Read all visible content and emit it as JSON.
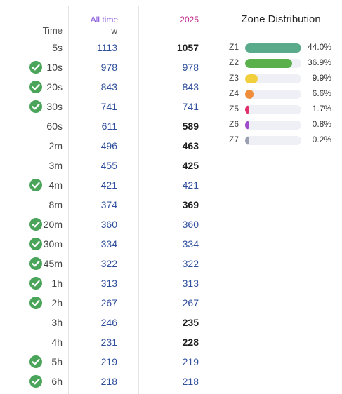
{
  "table": {
    "time_header": "Time",
    "alltime_header": "All time",
    "unit_header": "w",
    "year_header": "2025",
    "rows": [
      {
        "label": "5s",
        "all": "1113",
        "year": "1057",
        "check": false
      },
      {
        "label": "10s",
        "all": "978",
        "year": "978",
        "check": true
      },
      {
        "label": "20s",
        "all": "843",
        "year": "843",
        "check": true
      },
      {
        "label": "30s",
        "all": "741",
        "year": "741",
        "check": true
      },
      {
        "label": "60s",
        "all": "611",
        "year": "589",
        "check": false
      },
      {
        "label": "2m",
        "all": "496",
        "year": "463",
        "check": false
      },
      {
        "label": "3m",
        "all": "455",
        "year": "425",
        "check": false
      },
      {
        "label": "4m",
        "all": "421",
        "year": "421",
        "check": true
      },
      {
        "label": "8m",
        "all": "374",
        "year": "369",
        "check": false
      },
      {
        "label": "20m",
        "all": "360",
        "year": "360",
        "check": true
      },
      {
        "label": "30m",
        "all": "334",
        "year": "334",
        "check": true
      },
      {
        "label": "45m",
        "all": "322",
        "year": "322",
        "check": true
      },
      {
        "label": "1h",
        "all": "313",
        "year": "313",
        "check": true
      },
      {
        "label": "2h",
        "all": "267",
        "year": "267",
        "check": true
      },
      {
        "label": "3h",
        "all": "246",
        "year": "235",
        "check": false
      },
      {
        "label": "4h",
        "all": "231",
        "year": "228",
        "check": false
      },
      {
        "label": "5h",
        "all": "219",
        "year": "219",
        "check": true
      },
      {
        "label": "6h",
        "all": "218",
        "year": "218",
        "check": true
      }
    ]
  },
  "zones": {
    "title": "Zone Distribution",
    "items": [
      {
        "label": "Z1",
        "percent": 44.0,
        "text": "44.0%",
        "color": "#5aab8c"
      },
      {
        "label": "Z2",
        "percent": 36.9,
        "text": "36.9%",
        "color": "#5ab04a"
      },
      {
        "label": "Z3",
        "percent": 9.9,
        "text": "9.9%",
        "color": "#f2cf3c"
      },
      {
        "label": "Z4",
        "percent": 6.6,
        "text": "6.6%",
        "color": "#ef8d3a"
      },
      {
        "label": "Z5",
        "percent": 1.7,
        "text": "1.7%",
        "color": "#e0306a"
      },
      {
        "label": "Z6",
        "percent": 0.8,
        "text": "0.8%",
        "color": "#a04bc9"
      },
      {
        "label": "Z7",
        "percent": 0.2,
        "text": "0.2%",
        "color": "#9aa0b0"
      }
    ]
  },
  "icons": {
    "check": "check-circle-icon"
  },
  "colors": {
    "check": "#4aa55a",
    "alltime": "#7b49d8",
    "year": "#c22a8c",
    "value": "#2f4f9c"
  }
}
